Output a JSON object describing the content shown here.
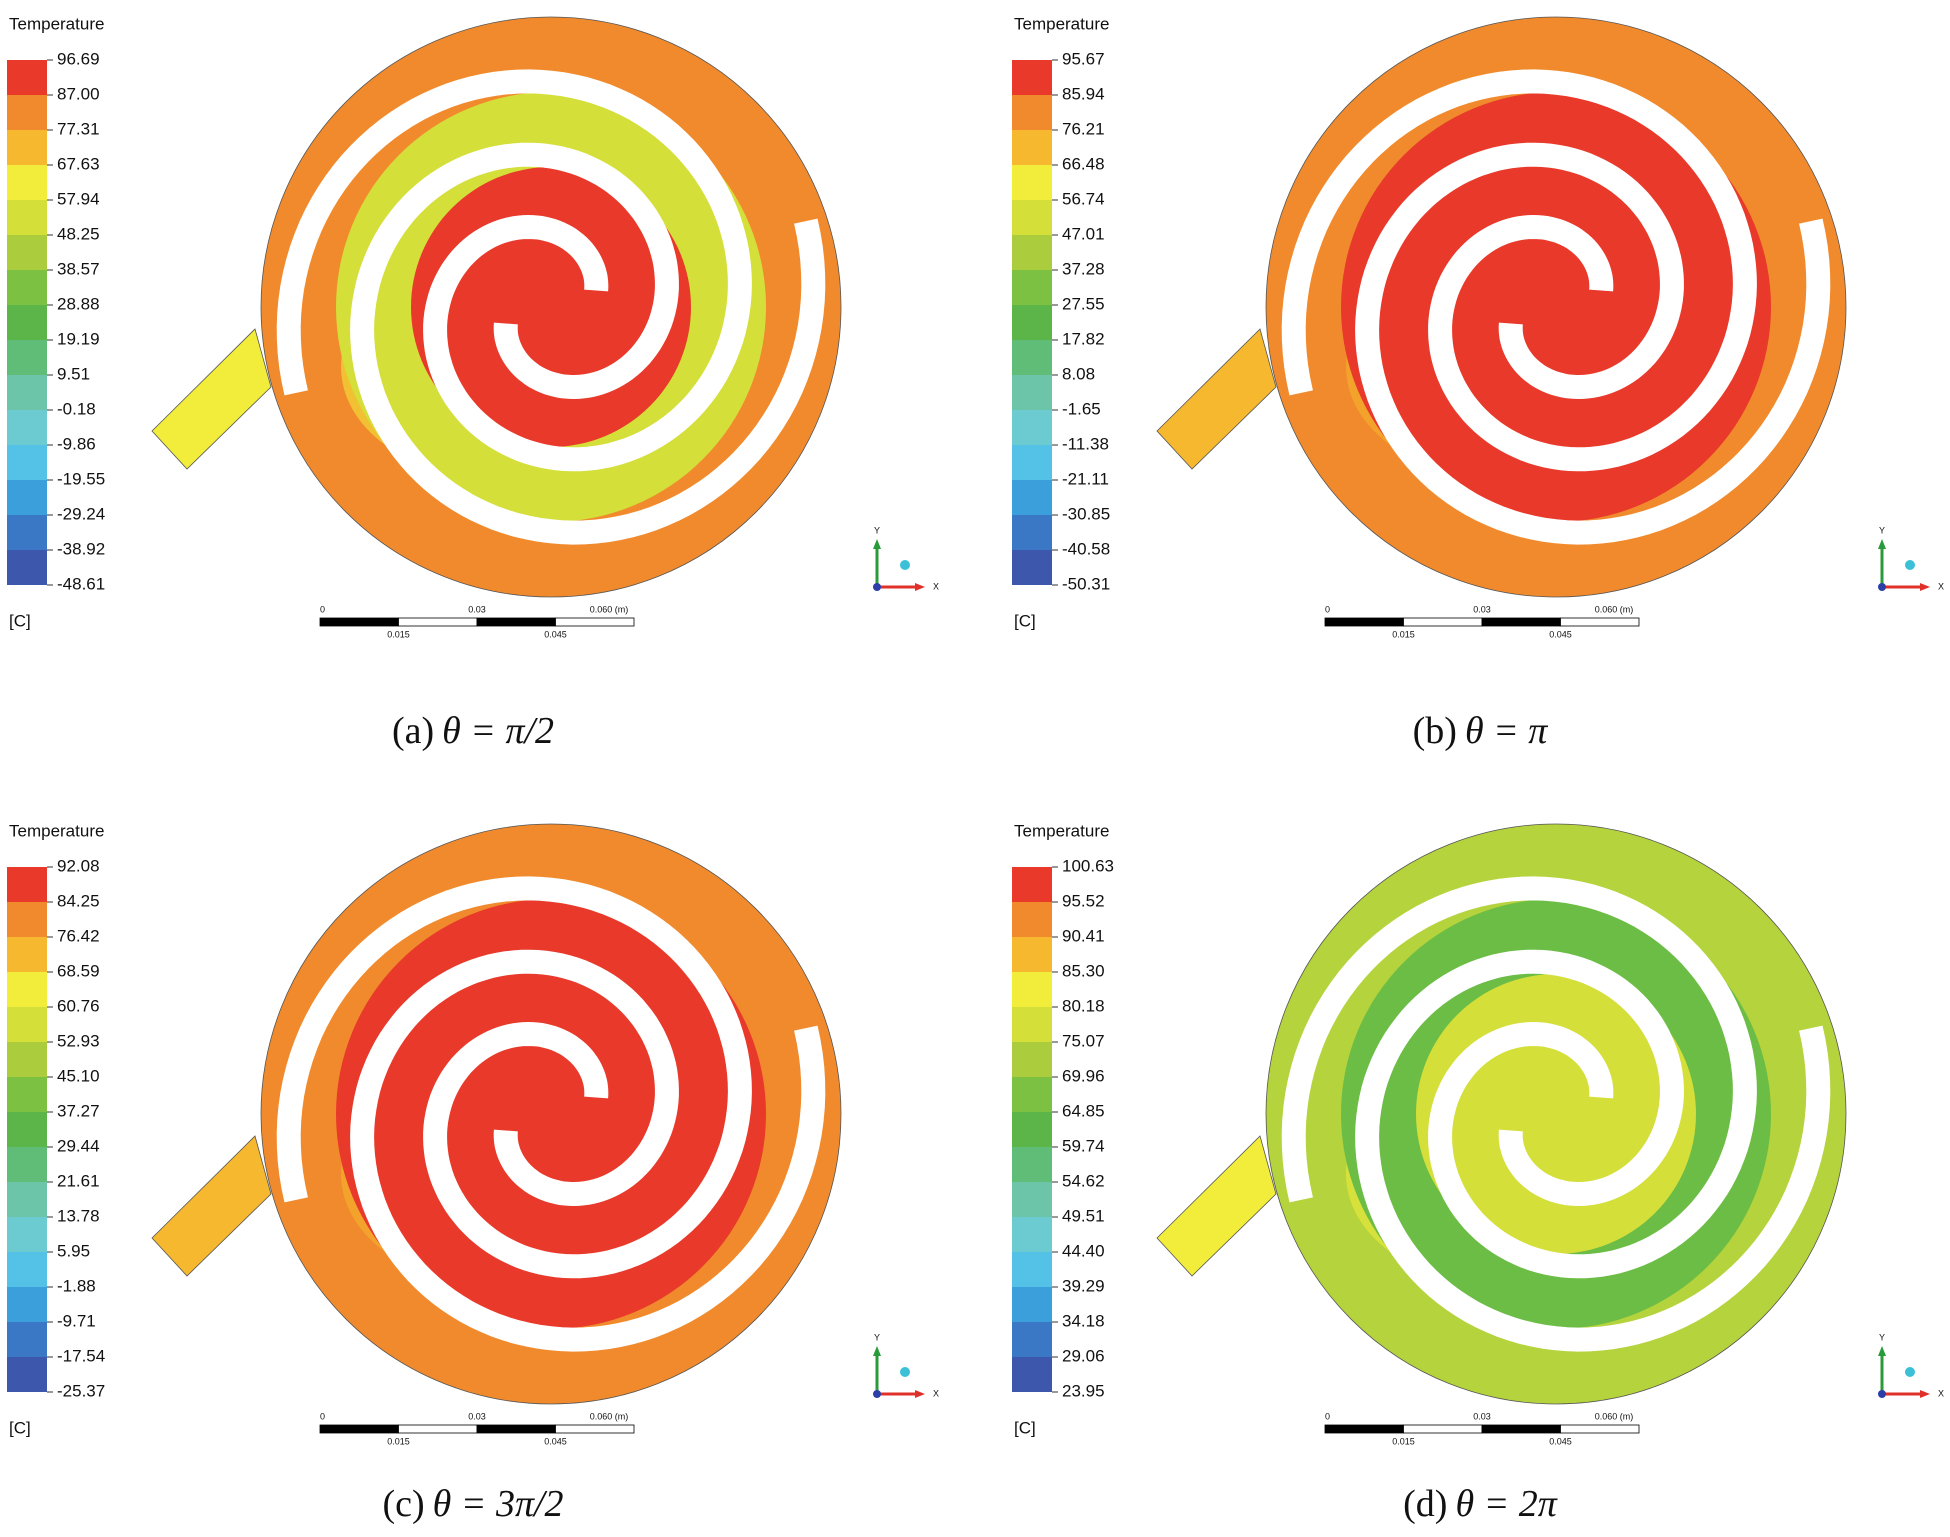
{
  "panels": [
    {
      "legend_title": "Temperature",
      "levels": [
        "96.69",
        "87.00",
        "77.31",
        "67.63",
        "57.94",
        "48.25",
        "38.57",
        "28.88",
        "19.19",
        "9.51",
        "-0.18",
        "-9.86",
        "-19.55",
        "-29.24",
        "-38.92",
        "-48.61"
      ],
      "unit": "[C]",
      "scale": {
        "top": [
          "0",
          "0.03",
          "0.060 (m)"
        ],
        "bottom": [
          "0.015",
          "0.045"
        ]
      },
      "axes": {
        "y": "Y",
        "x": "X"
      },
      "caption": {
        "label": "(a)",
        "formula": "θ = π/2"
      }
    },
    {
      "legend_title": "Temperature",
      "levels": [
        "95.67",
        "85.94",
        "76.21",
        "66.48",
        "56.74",
        "47.01",
        "37.28",
        "27.55",
        "17.82",
        "8.08",
        "-1.65",
        "-11.38",
        "-21.11",
        "-30.85",
        "-40.58",
        "-50.31"
      ],
      "unit": "[C]",
      "scale": {
        "top": [
          "0",
          "0.03",
          "0.060 (m)"
        ],
        "bottom": [
          "0.015",
          "0.045"
        ]
      },
      "axes": {
        "y": "Y",
        "x": "X"
      },
      "caption": {
        "label": "(b)",
        "formula": "θ = π"
      }
    },
    {
      "legend_title": "Temperature",
      "levels": [
        "92.08",
        "84.25",
        "76.42",
        "68.59",
        "60.76",
        "52.93",
        "45.10",
        "37.27",
        "29.44",
        "21.61",
        "13.78",
        "5.95",
        "-1.88",
        "-9.71",
        "-17.54",
        "-25.37"
      ],
      "unit": "[C]",
      "scale": {
        "top": [
          "0",
          "0.03",
          "0.060 (m)"
        ],
        "bottom": [
          "0.015",
          "0.045"
        ]
      },
      "axes": {
        "y": "Y",
        "x": "X"
      },
      "caption": {
        "label": "(c)",
        "formula": "θ = 3π/2"
      }
    },
    {
      "legend_title": "Temperature",
      "levels": [
        "100.63",
        "95.52",
        "90.41",
        "85.30",
        "80.18",
        "75.07",
        "69.96",
        "64.85",
        "59.74",
        "54.62",
        "49.51",
        "44.40",
        "39.29",
        "34.18",
        "29.06",
        "23.95"
      ],
      "unit": "[C]",
      "scale": {
        "top": [
          "0",
          "0.03",
          "0.060 (m)"
        ],
        "bottom": [
          "0.015",
          "0.045"
        ]
      },
      "axes": {
        "y": "Y",
        "x": "X"
      },
      "caption": {
        "label": "(d)",
        "formula": "θ = 2π"
      }
    }
  ]
}
